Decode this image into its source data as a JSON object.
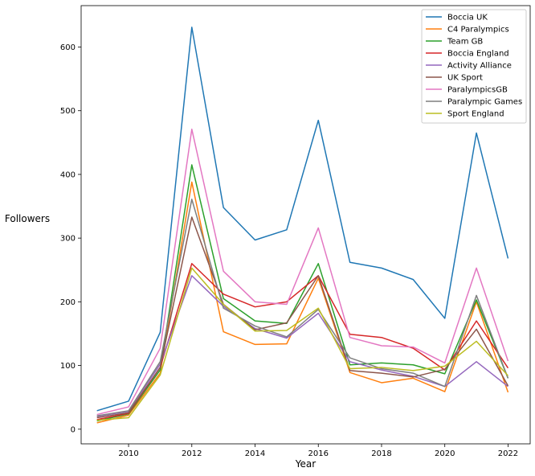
{
  "chart_data": {
    "type": "line",
    "title": "",
    "xlabel": "Year",
    "ylabel": "Followers",
    "x": [
      2009,
      2010,
      2011,
      2012,
      2013,
      2014,
      2015,
      2016,
      2017,
      2018,
      2019,
      2020,
      2021,
      2022
    ],
    "xlim": [
      2008.5,
      2022.7
    ],
    "ylim": [
      -23,
      665
    ],
    "xticks": [
      2010,
      2012,
      2014,
      2016,
      2018,
      2020,
      2022
    ],
    "yticks": [
      0,
      100,
      200,
      300,
      400,
      500,
      600
    ],
    "grid": false,
    "legend_position": "top-right",
    "series": [
      {
        "name": "Boccia UK",
        "color": "#1f77b4",
        "values": [
          29,
          44,
          152,
          631,
          348,
          297,
          313,
          485,
          262,
          253,
          235,
          174,
          465,
          268
        ]
      },
      {
        "name": "C4 Paralympics",
        "color": "#ff7f0e",
        "values": [
          10,
          22,
          88,
          388,
          153,
          133,
          134,
          237,
          89,
          73,
          80,
          59,
          200,
          58
        ]
      },
      {
        "name": "Team GB",
        "color": "#2ca02c",
        "values": [
          13,
          24,
          93,
          415,
          205,
          170,
          166,
          260,
          101,
          104,
          101,
          87,
          203,
          80
        ]
      },
      {
        "name": "Boccia England",
        "color": "#d62728",
        "values": [
          15,
          25,
          97,
          260,
          212,
          192,
          200,
          241,
          149,
          144,
          127,
          93,
          170,
          96
        ]
      },
      {
        "name": "Activity Alliance",
        "color": "#9467bd",
        "values": [
          20,
          28,
          102,
          241,
          193,
          158,
          143,
          182,
          106,
          93,
          83,
          67,
          106,
          67
        ]
      },
      {
        "name": "UK Sport",
        "color": "#8c564b",
        "values": [
          18,
          26,
          97,
          333,
          196,
          156,
          167,
          241,
          92,
          88,
          82,
          94,
          157,
          68
        ]
      },
      {
        "name": "ParalympicsGB",
        "color": "#e377c2",
        "values": [
          23,
          35,
          127,
          471,
          248,
          200,
          196,
          316,
          144,
          131,
          129,
          104,
          253,
          107
        ]
      },
      {
        "name": "Paralympic Games",
        "color": "#7f7f7f",
        "values": [
          21,
          29,
          106,
          361,
          190,
          162,
          145,
          188,
          112,
          95,
          88,
          67,
          210,
          80
        ]
      },
      {
        "name": "Sport England",
        "color": "#bcbd22",
        "values": [
          14,
          18,
          85,
          253,
          196,
          154,
          155,
          190,
          95,
          97,
          92,
          99,
          138,
          84
        ]
      }
    ]
  }
}
